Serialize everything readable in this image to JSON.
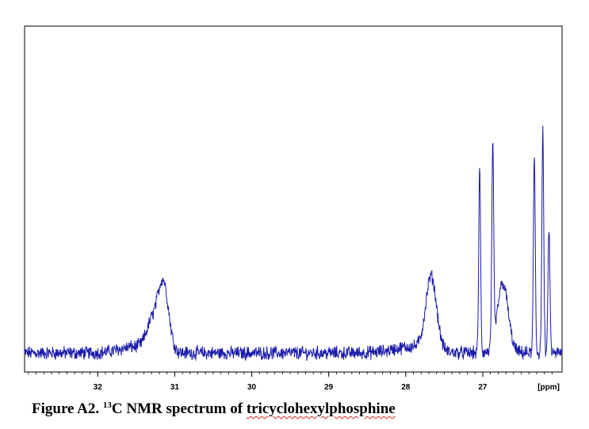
{
  "chart_data": {
    "type": "line",
    "xlabel": "[ppm]",
    "x_reversed": true,
    "xlim": [
      32.95,
      25.97
    ],
    "ticks": [
      {
        "value": 32,
        "label": "32"
      },
      {
        "value": 31,
        "label": "31"
      },
      {
        "value": 30,
        "label": "30"
      },
      {
        "value": 29,
        "label": "29"
      },
      {
        "value": 28,
        "label": "28"
      },
      {
        "value": 27,
        "label": "27"
      }
    ],
    "series": [
      {
        "color": "#1a1aaa",
        "peaks": [
          {
            "ppm": 26.22,
            "height": 0.7,
            "type": "doublet-line"
          },
          {
            "ppm": 26.14,
            "height": 0.4,
            "type": "doublet-line"
          },
          {
            "ppm": 26.33,
            "height": 0.62,
            "type": "doublet-line"
          },
          {
            "ppm": 26.74,
            "height": 0.22,
            "type": "broad"
          },
          {
            "ppm": 26.87,
            "height": 0.62,
            "type": "doublet-line"
          },
          {
            "ppm": 27.04,
            "height": 0.58,
            "type": "doublet-line"
          },
          {
            "ppm": 27.67,
            "height": 0.23,
            "type": "broad"
          },
          {
            "ppm": 31.15,
            "height": 0.22,
            "type": "broad"
          },
          {
            "ppm": 31.3,
            "height": 0.08,
            "type": "broad"
          }
        ]
      }
    ]
  },
  "caption": {
    "prefix": "Figure A2. ",
    "superscript": "13",
    "middle": "C NMR spectrum of ",
    "compound": "tricyclohexylphosphine"
  }
}
